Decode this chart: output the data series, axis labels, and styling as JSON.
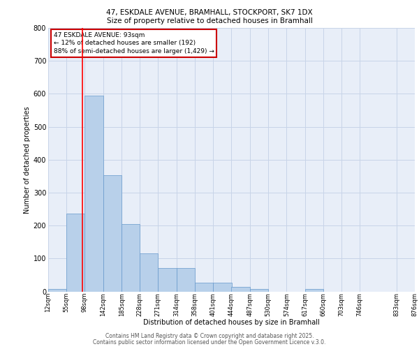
{
  "title1": "47, ESKDALE AVENUE, BRAMHALL, STOCKPORT, SK7 1DX",
  "title2": "Size of property relative to detached houses in Bramhall",
  "xlabel": "Distribution of detached houses by size in Bramhall",
  "ylabel": "Number of detached properties",
  "bar_values": [
    7,
    237,
    595,
    353,
    205,
    115,
    72,
    72,
    27,
    27,
    13,
    8,
    0,
    0,
    7,
    0,
    0,
    0,
    0
  ],
  "bin_edges": [
    12,
    55,
    98,
    142,
    185,
    228,
    271,
    314,
    358,
    401,
    444,
    487,
    530,
    574,
    617,
    660,
    703,
    746,
    833,
    876
  ],
  "xtick_labels": [
    "12sqm",
    "55sqm",
    "98sqm",
    "142sqm",
    "185sqm",
    "228sqm",
    "271sqm",
    "314sqm",
    "358sqm",
    "401sqm",
    "444sqm",
    "487sqm",
    "530sqm",
    "574sqm",
    "617sqm",
    "660sqm",
    "703sqm",
    "746sqm",
    "833sqm",
    "876sqm"
  ],
  "bar_color": "#b8d0ea",
  "bar_edge_color": "#6699cc",
  "grid_color": "#c8d4e8",
  "bg_color": "#e8eef8",
  "red_line_x": 93,
  "ylim": [
    0,
    800
  ],
  "yticks": [
    0,
    100,
    200,
    300,
    400,
    500,
    600,
    700,
    800
  ],
  "annotation_lines": [
    "47 ESKDALE AVENUE: 93sqm",
    "← 12% of detached houses are smaller (192)",
    "88% of semi-detached houses are larger (1,429) →"
  ],
  "annotation_box_color": "#ffffff",
  "annotation_box_edge_color": "#cc0000",
  "footer1": "Contains HM Land Registry data © Crown copyright and database right 2025.",
  "footer2": "Contains public sector information licensed under the Open Government Licence v.3.0."
}
